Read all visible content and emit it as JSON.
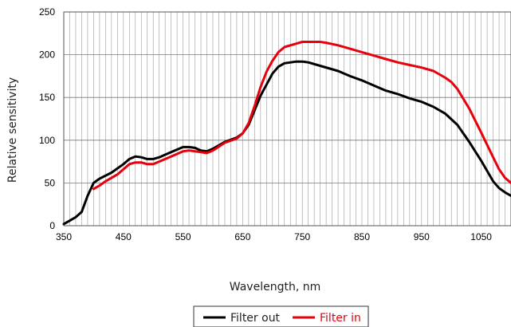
{
  "chart_data": {
    "type": "line",
    "xlabel": "Wavelength, nm",
    "ylabel": "Relative sensitivity",
    "xlim": [
      350,
      1100
    ],
    "ylim": [
      0,
      250
    ],
    "x_ticks": [
      350,
      450,
      550,
      650,
      750,
      850,
      950,
      1050
    ],
    "y_ticks": [
      0,
      50,
      100,
      150,
      200,
      250
    ],
    "grid": true,
    "legend": "bottom",
    "series": [
      {
        "name": "Filter out",
        "color": "#000000",
        "points": [
          [
            350,
            2
          ],
          [
            370,
            10
          ],
          [
            380,
            16
          ],
          [
            390,
            35
          ],
          [
            400,
            50
          ],
          [
            410,
            55
          ],
          [
            430,
            62
          ],
          [
            450,
            72
          ],
          [
            460,
            78
          ],
          [
            470,
            81
          ],
          [
            480,
            80
          ],
          [
            490,
            78
          ],
          [
            500,
            78
          ],
          [
            510,
            80
          ],
          [
            530,
            86
          ],
          [
            550,
            92
          ],
          [
            560,
            92
          ],
          [
            570,
            91
          ],
          [
            580,
            88
          ],
          [
            590,
            87
          ],
          [
            600,
            90
          ],
          [
            620,
            98
          ],
          [
            640,
            103
          ],
          [
            650,
            108
          ],
          [
            660,
            118
          ],
          [
            670,
            135
          ],
          [
            680,
            152
          ],
          [
            700,
            178
          ],
          [
            710,
            186
          ],
          [
            720,
            190
          ],
          [
            740,
            192
          ],
          [
            750,
            192
          ],
          [
            760,
            191
          ],
          [
            780,
            187
          ],
          [
            810,
            181
          ],
          [
            830,
            175
          ],
          [
            850,
            170
          ],
          [
            870,
            164
          ],
          [
            890,
            158
          ],
          [
            910,
            154
          ],
          [
            930,
            149
          ],
          [
            950,
            145
          ],
          [
            970,
            139
          ],
          [
            990,
            131
          ],
          [
            1010,
            118
          ],
          [
            1030,
            98
          ],
          [
            1050,
            76
          ],
          [
            1070,
            52
          ],
          [
            1080,
            44
          ],
          [
            1090,
            39
          ],
          [
            1100,
            35
          ]
        ]
      },
      {
        "name": "Filter in",
        "color": "#e8000b",
        "points": [
          [
            400,
            43
          ],
          [
            410,
            47
          ],
          [
            420,
            52
          ],
          [
            440,
            60
          ],
          [
            450,
            66
          ],
          [
            460,
            72
          ],
          [
            470,
            74
          ],
          [
            480,
            74
          ],
          [
            490,
            72
          ],
          [
            500,
            72
          ],
          [
            510,
            75
          ],
          [
            530,
            81
          ],
          [
            550,
            87
          ],
          [
            560,
            88
          ],
          [
            570,
            87
          ],
          [
            580,
            86
          ],
          [
            590,
            85
          ],
          [
            600,
            88
          ],
          [
            620,
            97
          ],
          [
            640,
            102
          ],
          [
            650,
            108
          ],
          [
            660,
            120
          ],
          [
            670,
            140
          ],
          [
            680,
            162
          ],
          [
            690,
            180
          ],
          [
            700,
            193
          ],
          [
            710,
            203
          ],
          [
            720,
            209
          ],
          [
            740,
            213
          ],
          [
            750,
            215
          ],
          [
            770,
            215
          ],
          [
            780,
            215
          ],
          [
            790,
            214
          ],
          [
            810,
            211
          ],
          [
            830,
            207
          ],
          [
            850,
            203
          ],
          [
            870,
            199
          ],
          [
            890,
            195
          ],
          [
            910,
            191
          ],
          [
            930,
            188
          ],
          [
            950,
            185
          ],
          [
            970,
            181
          ],
          [
            990,
            173
          ],
          [
            1000,
            168
          ],
          [
            1010,
            160
          ],
          [
            1030,
            137
          ],
          [
            1050,
            109
          ],
          [
            1070,
            80
          ],
          [
            1080,
            66
          ],
          [
            1090,
            56
          ],
          [
            1100,
            50
          ]
        ]
      }
    ]
  }
}
